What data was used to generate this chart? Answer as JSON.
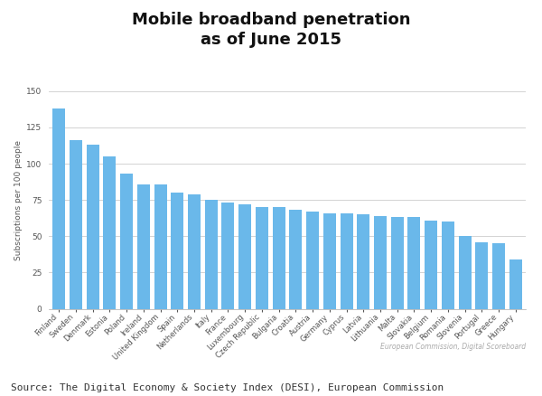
{
  "title": "Mobile broadband penetration\nas of June 2015",
  "ylabel": "Subscriptions per 100 people",
  "source_text": "Source: The Digital Economy & Society Index (DESI), European Commission",
  "watermark": "European Commission, Digital Scoreboard",
  "bar_color": "#6ab8ea",
  "background_color": "#ffffff",
  "ylim": [
    0,
    150
  ],
  "yticks": [
    0,
    25,
    50,
    75,
    100,
    125,
    150
  ],
  "categories": [
    "Finland",
    "Sweden",
    "Denmark",
    "Estonia",
    "Poland",
    "Ireland",
    "United Kingdom",
    "Spain",
    "Netherlands",
    "Italy",
    "France",
    "Luxembourg",
    "Czech Republic",
    "Bulgaria",
    "Croatia",
    "Austria",
    "Germany",
    "Cyprus",
    "Latvia",
    "Lithuania",
    "Malta",
    "Slovakia",
    "Belgium",
    "Romania",
    "Slovenia",
    "Portugal",
    "Greece",
    "Hungary"
  ],
  "values": [
    138,
    116,
    113,
    105,
    93,
    86,
    86,
    80,
    79,
    75,
    73,
    72,
    70,
    70,
    68,
    67,
    66,
    66,
    65,
    64,
    63,
    63,
    61,
    60,
    50,
    46,
    45,
    34
  ],
  "title_fontsize": 13,
  "ylabel_fontsize": 6.5,
  "ytick_fontsize": 6.5,
  "xtick_fontsize": 6,
  "source_fontsize": 8,
  "watermark_fontsize": 5.5
}
